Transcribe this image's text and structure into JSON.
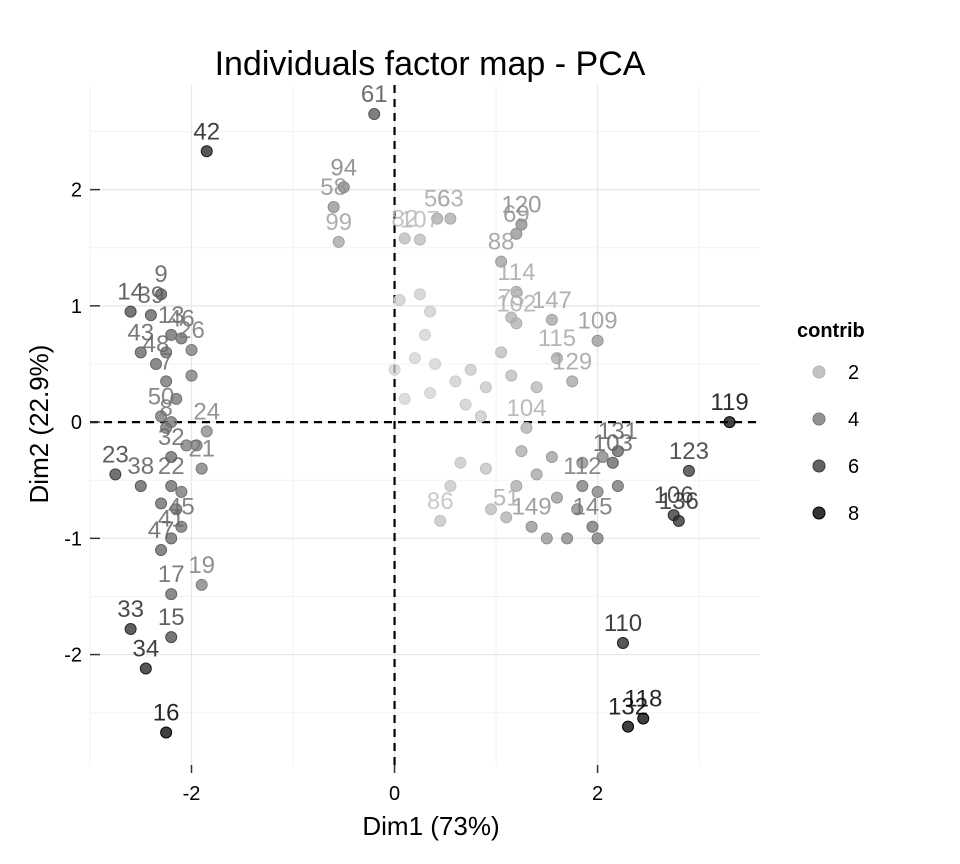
{
  "chart_data": {
    "type": "scatter",
    "title": "Individuals factor map - PCA",
    "xlabel": "Dim1 (73%)",
    "ylabel": "Dim2 (22.9%)",
    "xlim": [
      -3.0,
      3.6
    ],
    "ylim": [
      -2.95,
      2.9
    ],
    "x_ticks": [
      -2,
      0,
      2
    ],
    "y_ticks": [
      -2,
      -1,
      0,
      1,
      2
    ],
    "grid": true,
    "reference_lines": {
      "x": 0,
      "y": 0,
      "style": "dashed"
    },
    "legend": {
      "title": "contrib",
      "position": "right",
      "entries": [
        {
          "label": "2",
          "value": 2
        },
        {
          "label": "4",
          "value": 4
        },
        {
          "label": "6",
          "value": 6
        },
        {
          "label": "8",
          "value": 8
        }
      ]
    },
    "points": [
      {
        "label": "61",
        "x": -0.2,
        "y": 2.65,
        "contrib": 5.2
      },
      {
        "label": "42",
        "x": -1.85,
        "y": 2.33,
        "contrib": 7.0
      },
      {
        "label": "94",
        "x": -0.5,
        "y": 2.02,
        "contrib": 3.6
      },
      {
        "label": "58",
        "x": -0.6,
        "y": 1.85,
        "contrib": 3.2
      },
      {
        "label": "99",
        "x": -0.55,
        "y": 1.55,
        "contrib": 2.6
      },
      {
        "label": "82",
        "x": 0.1,
        "y": 1.58,
        "contrib": 1.8
      },
      {
        "label": "107",
        "x": 0.25,
        "y": 1.57,
        "contrib": 1.8
      },
      {
        "label": "56",
        "x": 0.42,
        "y": 1.75,
        "contrib": 2.4
      },
      {
        "label": "63",
        "x": 0.55,
        "y": 1.75,
        "contrib": 2.4
      },
      {
        "label": "120",
        "x": 1.25,
        "y": 1.7,
        "contrib": 3.4
      },
      {
        "label": "69",
        "x": 1.2,
        "y": 1.62,
        "contrib": 3.2
      },
      {
        "label": "88",
        "x": 1.05,
        "y": 1.38,
        "contrib": 2.8
      },
      {
        "label": "114",
        "x": 1.2,
        "y": 1.12,
        "contrib": 2.4
      },
      {
        "label": "73",
        "x": 1.15,
        "y": 0.9,
        "contrib": 2.2
      },
      {
        "label": "147",
        "x": 1.55,
        "y": 0.88,
        "contrib": 2.6
      },
      {
        "label": "109",
        "x": 2.0,
        "y": 0.7,
        "contrib": 3.0
      },
      {
        "label": "9",
        "x": -2.3,
        "y": 1.1,
        "contrib": 5.0
      },
      {
        "label": "14",
        "x": -2.6,
        "y": 0.95,
        "contrib": 5.6
      },
      {
        "label": "39",
        "x": -2.4,
        "y": 0.92,
        "contrib": 5.0
      },
      {
        "label": "13",
        "x": -2.2,
        "y": 0.75,
        "contrib": 4.6
      },
      {
        "label": "46",
        "x": -2.1,
        "y": 0.72,
        "contrib": 4.4
      },
      {
        "label": "26",
        "x": -2.0,
        "y": 0.62,
        "contrib": 4.0
      },
      {
        "label": "43",
        "x": -2.5,
        "y": 0.6,
        "contrib": 4.8
      },
      {
        "label": "48",
        "x": -2.35,
        "y": 0.5,
        "contrib": 4.6
      },
      {
        "label": "7",
        "x": -2.25,
        "y": 0.35,
        "contrib": 4.4
      },
      {
        "label": "50",
        "x": -2.3,
        "y": 0.05,
        "contrib": 4.2
      },
      {
        "label": "8",
        "x": -2.25,
        "y": -0.05,
        "contrib": 4.2
      },
      {
        "label": "24",
        "x": -1.85,
        "y": -0.08,
        "contrib": 3.6
      },
      {
        "label": "23",
        "x": -2.75,
        "y": -0.45,
        "contrib": 5.8
      },
      {
        "label": "38",
        "x": -2.5,
        "y": -0.55,
        "contrib": 5.0
      },
      {
        "label": "32",
        "x": -2.2,
        "y": -0.3,
        "contrib": 4.6
      },
      {
        "label": "22",
        "x": -2.2,
        "y": -0.55,
        "contrib": 4.6
      },
      {
        "label": "21",
        "x": -1.9,
        "y": -0.4,
        "contrib": 4.0
      },
      {
        "label": "47",
        "x": -2.3,
        "y": -1.1,
        "contrib": 4.8
      },
      {
        "label": "41",
        "x": -2.2,
        "y": -1.0,
        "contrib": 4.6
      },
      {
        "label": "45",
        "x": -2.1,
        "y": -0.9,
        "contrib": 4.4
      },
      {
        "label": "19",
        "x": -1.9,
        "y": -1.4,
        "contrib": 3.8
      },
      {
        "label": "17",
        "x": -2.2,
        "y": -1.48,
        "contrib": 4.6
      },
      {
        "label": "15",
        "x": -2.2,
        "y": -1.85,
        "contrib": 5.6
      },
      {
        "label": "33",
        "x": -2.6,
        "y": -1.78,
        "contrib": 6.6
      },
      {
        "label": "34",
        "x": -2.45,
        "y": -2.12,
        "contrib": 7.0
      },
      {
        "label": "16",
        "x": -2.25,
        "y": -2.67,
        "contrib": 8.0
      },
      {
        "label": "119",
        "x": 3.3,
        "y": 0.0,
        "contrib": 7.8
      },
      {
        "label": "123",
        "x": 2.9,
        "y": -0.42,
        "contrib": 6.2
      },
      {
        "label": "106",
        "x": 2.75,
        "y": -0.8,
        "contrib": 6.4
      },
      {
        "label": "136",
        "x": 2.8,
        "y": -0.85,
        "contrib": 6.6
      },
      {
        "label": "131",
        "x": 2.2,
        "y": -0.25,
        "contrib": 4.8
      },
      {
        "label": "103",
        "x": 2.15,
        "y": -0.35,
        "contrib": 4.8
      },
      {
        "label": "110",
        "x": 2.25,
        "y": -1.9,
        "contrib": 7.0
      },
      {
        "label": "118",
        "x": 2.45,
        "y": -2.55,
        "contrib": 8.0
      },
      {
        "label": "132",
        "x": 2.3,
        "y": -2.62,
        "contrib": 8.0
      },
      {
        "label": "86",
        "x": 0.45,
        "y": -0.85,
        "contrib": 1.6
      },
      {
        "label": "51",
        "x": 1.1,
        "y": -0.82,
        "contrib": 2.2
      },
      {
        "label": "149",
        "x": 1.35,
        "y": -0.9,
        "contrib": 3.2
      },
      {
        "label": "104",
        "x": 1.3,
        "y": -0.05,
        "contrib": 2.2
      },
      {
        "label": "129",
        "x": 1.75,
        "y": 0.35,
        "contrib": 2.6
      },
      {
        "label": "115",
        "x": 1.6,
        "y": 0.55,
        "contrib": 2.4
      },
      {
        "label": "102",
        "x": 1.2,
        "y": 0.85,
        "contrib": 2.2
      },
      {
        "label": "112",
        "x": 1.85,
        "y": -0.55,
        "contrib": 4.0
      },
      {
        "label": "145",
        "x": 1.95,
        "y": -0.9,
        "contrib": 4.2
      },
      {
        "label": "",
        "x": 0.05,
        "y": 1.05,
        "contrib": 1.2
      },
      {
        "label": "",
        "x": 0.25,
        "y": 1.1,
        "contrib": 1.2
      },
      {
        "label": "",
        "x": 0.35,
        "y": 0.95,
        "contrib": 1.2
      },
      {
        "label": "",
        "x": 0.3,
        "y": 0.75,
        "contrib": 1.0
      },
      {
        "label": "",
        "x": 0.2,
        "y": 0.55,
        "contrib": 1.0
      },
      {
        "label": "",
        "x": 0.4,
        "y": 0.5,
        "contrib": 1.0
      },
      {
        "label": "",
        "x": 0.0,
        "y": 0.45,
        "contrib": 1.0
      },
      {
        "label": "",
        "x": 0.1,
        "y": 0.2,
        "contrib": 1.0
      },
      {
        "label": "",
        "x": 0.35,
        "y": 0.25,
        "contrib": 1.0
      },
      {
        "label": "",
        "x": 0.6,
        "y": 0.35,
        "contrib": 1.2
      },
      {
        "label": "",
        "x": 0.75,
        "y": 0.45,
        "contrib": 1.4
      },
      {
        "label": "",
        "x": 0.9,
        "y": 0.3,
        "contrib": 1.4
      },
      {
        "label": "",
        "x": 0.7,
        "y": 0.15,
        "contrib": 1.2
      },
      {
        "label": "",
        "x": 0.85,
        "y": 0.05,
        "contrib": 1.4
      },
      {
        "label": "",
        "x": 0.65,
        "y": -0.35,
        "contrib": 1.4
      },
      {
        "label": "",
        "x": 0.9,
        "y": -0.4,
        "contrib": 1.6
      },
      {
        "label": "",
        "x": 0.95,
        "y": -0.75,
        "contrib": 1.8
      },
      {
        "label": "",
        "x": 1.05,
        "y": 0.6,
        "contrib": 1.8
      },
      {
        "label": "",
        "x": 1.15,
        "y": 0.4,
        "contrib": 1.8
      },
      {
        "label": "",
        "x": 1.4,
        "y": 0.3,
        "contrib": 2.0
      },
      {
        "label": "",
        "x": 1.25,
        "y": -0.25,
        "contrib": 2.4
      },
      {
        "label": "",
        "x": 1.4,
        "y": -0.45,
        "contrib": 2.6
      },
      {
        "label": "",
        "x": 1.55,
        "y": -0.3,
        "contrib": 2.8
      },
      {
        "label": "",
        "x": 1.6,
        "y": -0.65,
        "contrib": 3.0
      },
      {
        "label": "",
        "x": 1.7,
        "y": -1.0,
        "contrib": 3.6
      },
      {
        "label": "",
        "x": 1.8,
        "y": -0.75,
        "contrib": 3.6
      },
      {
        "label": "",
        "x": 1.85,
        "y": -0.35,
        "contrib": 3.4
      },
      {
        "label": "",
        "x": 2.0,
        "y": -0.6,
        "contrib": 3.8
      },
      {
        "label": "",
        "x": 2.05,
        "y": -0.3,
        "contrib": 3.8
      },
      {
        "label": "",
        "x": 2.2,
        "y": -0.55,
        "contrib": 4.2
      },
      {
        "label": "",
        "x": 2.0,
        "y": -1.0,
        "contrib": 4.0
      },
      {
        "label": "",
        "x": 1.5,
        "y": -1.0,
        "contrib": 3.2
      },
      {
        "label": "",
        "x": 1.2,
        "y": -0.55,
        "contrib": 2.4
      },
      {
        "label": "",
        "x": 0.55,
        "y": -0.55,
        "contrib": 1.4
      },
      {
        "label": "",
        "x": -2.15,
        "y": 0.2,
        "contrib": 4.2
      },
      {
        "label": "",
        "x": -2.05,
        "y": -0.2,
        "contrib": 4.0
      },
      {
        "label": "",
        "x": -2.3,
        "y": -0.7,
        "contrib": 4.6
      },
      {
        "label": "",
        "x": -2.1,
        "y": -0.6,
        "contrib": 4.2
      },
      {
        "label": "",
        "x": -2.0,
        "y": 0.4,
        "contrib": 4.0
      },
      {
        "label": "",
        "x": -2.2,
        "y": 0.0,
        "contrib": 4.2
      },
      {
        "label": "",
        "x": -1.95,
        "y": -0.2,
        "contrib": 4.0
      },
      {
        "label": "",
        "x": -2.25,
        "y": 0.6,
        "contrib": 4.4
      },
      {
        "label": "",
        "x": -2.15,
        "y": -0.75,
        "contrib": 4.4
      }
    ]
  }
}
